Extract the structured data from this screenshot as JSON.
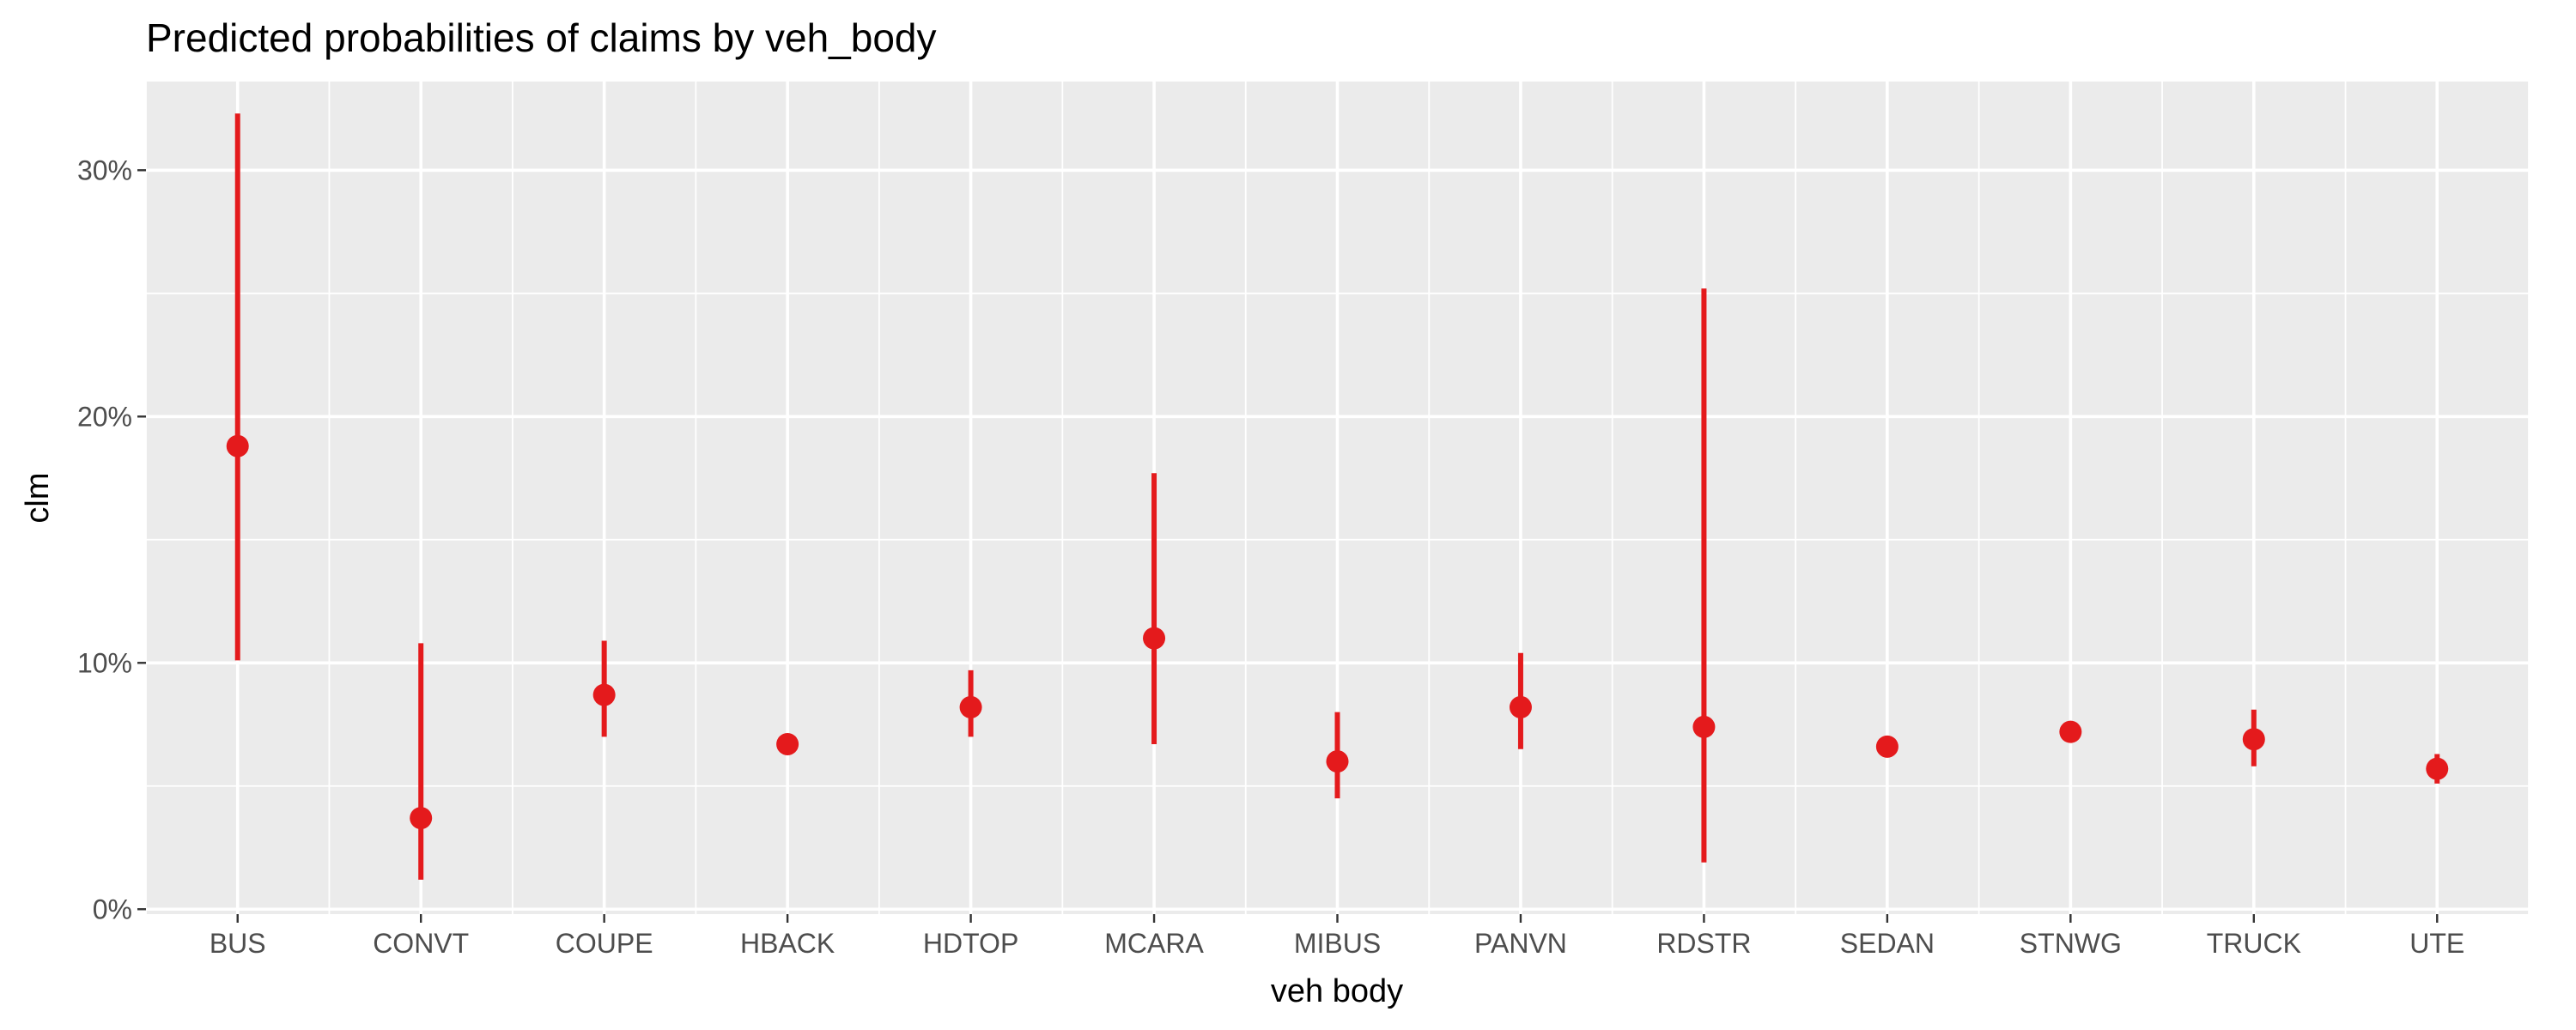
{
  "chart_data": {
    "type": "pointrange",
    "title": "Predicted probabilities of claims by veh_body",
    "xlabel": "veh body",
    "ylabel": "clm",
    "ylim": [
      -0.002,
      0.336
    ],
    "yticks": [
      0,
      0.1,
      0.2,
      0.3
    ],
    "ytick_labels": [
      "0%",
      "10%",
      "20%",
      "30%"
    ],
    "grid": true,
    "legend": "none",
    "color": "#e41a1c",
    "categories": [
      "BUS",
      "CONVT",
      "COUPE",
      "HBACK",
      "HDTOP",
      "MCARA",
      "MIBUS",
      "PANVN",
      "RDSTR",
      "SEDAN",
      "STNWG",
      "TRUCK",
      "UTE"
    ],
    "series": [
      {
        "values": [
          0.188,
          0.037,
          0.087,
          0.067,
          0.082,
          0.11,
          0.06,
          0.082,
          0.074,
          0.066,
          0.072,
          0.069,
          0.057
        ],
        "lower": [
          0.101,
          0.012,
          0.07,
          0.065,
          0.07,
          0.067,
          0.045,
          0.065,
          0.019,
          0.064,
          0.07,
          0.058,
          0.051
        ],
        "upper": [
          0.323,
          0.108,
          0.109,
          0.069,
          0.097,
          0.177,
          0.08,
          0.104,
          0.252,
          0.068,
          0.074,
          0.081,
          0.063
        ]
      }
    ]
  }
}
